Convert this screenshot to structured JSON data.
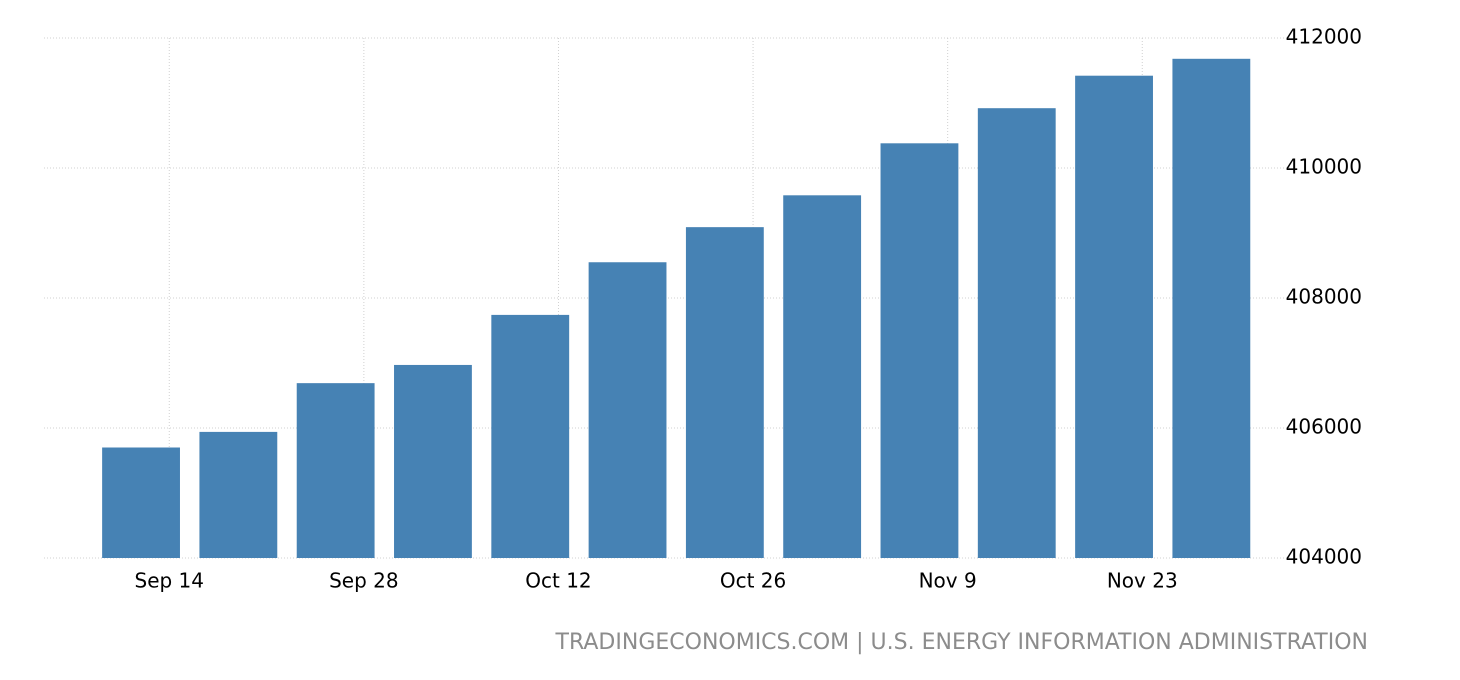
{
  "chart_data": {
    "type": "bar",
    "x": [
      0,
      1,
      2,
      3,
      4,
      5,
      6,
      7,
      8,
      9,
      10,
      11
    ],
    "values": [
      405700,
      405940,
      406690,
      406970,
      407740,
      408550,
      409090,
      409580,
      410380,
      410920,
      411420,
      411680
    ],
    "color": "#4682b4",
    "xlim": [
      -0.5,
      11.5
    ],
    "xticks": [
      {
        "value": 0.29,
        "label": "Sep 14"
      },
      {
        "value": 2.29,
        "label": "Sep 28"
      },
      {
        "value": 4.29,
        "label": "Oct 12"
      },
      {
        "value": 6.29,
        "label": "Oct 26"
      },
      {
        "value": 8.29,
        "label": "Nov 9"
      },
      {
        "value": 10.29,
        "label": "Nov 23"
      }
    ],
    "ylim": [
      404000,
      412000
    ],
    "yticks": [
      404000,
      406000,
      408000,
      410000,
      412000
    ],
    "grid": true,
    "source": "TRADINGECONOMICS.COM | U.S. ENERGY INFORMATION ADMINISTRATION"
  }
}
